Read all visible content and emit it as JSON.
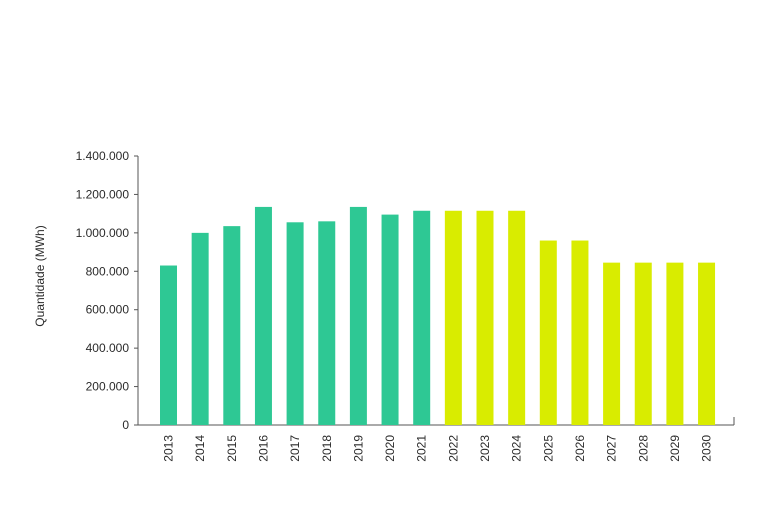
{
  "chart_data": {
    "type": "bar",
    "ylabel": "Quantidade (MWh)",
    "xlabel": "",
    "ylim": [
      0,
      1400000
    ],
    "yticks": [
      "0",
      "200.000",
      "400.000",
      "600.000",
      "800.000",
      "1.000.000",
      "1.200.000",
      "1.400.000"
    ],
    "ytick_values": [
      0,
      200000,
      400000,
      600000,
      800000,
      1000000,
      1200000,
      1400000
    ],
    "categories": [
      "2013",
      "2014",
      "2015",
      "2016",
      "2017",
      "2018",
      "2019",
      "2020",
      "2021",
      "2022",
      "2023",
      "2024",
      "2025",
      "2026",
      "2027",
      "2028",
      "2029",
      "2030"
    ],
    "values": [
      830000,
      1000000,
      1035000,
      1135000,
      1055000,
      1060000,
      1135000,
      1095000,
      1115000,
      1115000,
      1115000,
      1115000,
      960000,
      960000,
      845000,
      845000,
      845000,
      845000
    ],
    "colors": {
      "historical": "#2ec894",
      "projected": "#d9ec00",
      "axis": "#555555"
    },
    "bar_color_groups": [
      "historical",
      "historical",
      "historical",
      "historical",
      "historical",
      "historical",
      "historical",
      "historical",
      "historical",
      "projected",
      "projected",
      "projected",
      "projected",
      "projected",
      "projected",
      "projected",
      "projected",
      "projected"
    ],
    "grid": false,
    "legend": "none"
  }
}
